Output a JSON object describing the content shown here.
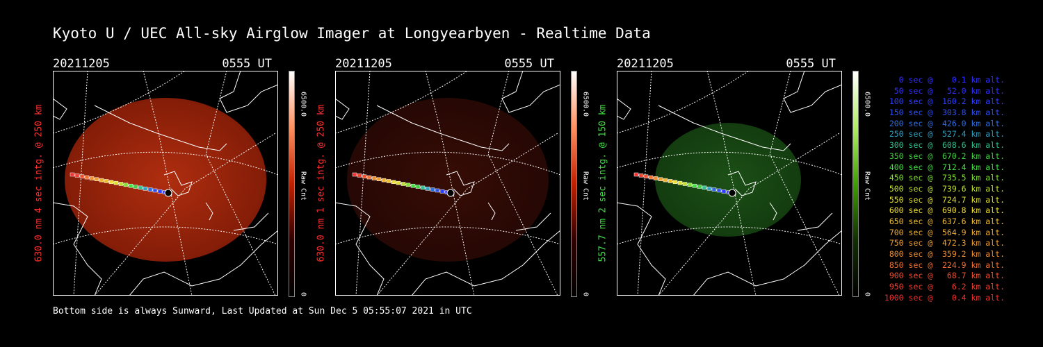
{
  "title": "Kyoto U / UEC All-sky Airglow Imager at Longyearbyen - Realtime Data",
  "panels": [
    {
      "date": "20211205",
      "time": "0555 UT",
      "ylabel": "630.0 nm 4 sec intg. @ 250 km",
      "label_color": "#ff3030",
      "cbar_max": "6500.0",
      "cbar_unit": "Raw Cnt",
      "cbar_min": "0",
      "glow": "red-bright"
    },
    {
      "date": "20211205",
      "time": "0555 UT",
      "ylabel": "630.0 nm 1 sec intg. @ 250 km",
      "label_color": "#ff3030",
      "cbar_max": "6500.0",
      "cbar_unit": "Raw Cnt",
      "cbar_min": "0",
      "glow": "red-dim"
    },
    {
      "date": "20211205",
      "time": "0555 UT",
      "ylabel": "557.7 nm 2 sec intg. @ 150 km",
      "label_color": "#40e040",
      "cbar_max": "6500.0",
      "cbar_unit": "Raw Cnt",
      "cbar_min": "0",
      "glow": "green"
    }
  ],
  "legend": [
    {
      "text": "   0 sec @    0.1 km alt.",
      "color": "#3030ff"
    },
    {
      "text": "  50 sec @   52.0 km alt.",
      "color": "#3030ff"
    },
    {
      "text": " 100 sec @  160.2 km alt.",
      "color": "#3040ff"
    },
    {
      "text": " 150 sec @  303.8 km alt.",
      "color": "#3050f0"
    },
    {
      "text": " 200 sec @  426.0 km alt.",
      "color": "#3070e0"
    },
    {
      "text": " 250 sec @  527.4 km alt.",
      "color": "#30a0c0"
    },
    {
      "text": " 300 sec @  608.6 km alt.",
      "color": "#30c090"
    },
    {
      "text": " 350 sec @  670.2 km alt.",
      "color": "#40d040"
    },
    {
      "text": " 400 sec @  712.4 km alt.",
      "color": "#40e040"
    },
    {
      "text": " 450 sec @  735.5 km alt.",
      "color": "#80e030"
    },
    {
      "text": " 500 sec @  739.6 km alt.",
      "color": "#c0e030"
    },
    {
      "text": " 550 sec @  724.7 km alt.",
      "color": "#e0e030"
    },
    {
      "text": " 600 sec @  690.8 km alt.",
      "color": "#f0e030"
    },
    {
      "text": " 650 sec @  637.6 km alt.",
      "color": "#f0c030"
    },
    {
      "text": " 700 sec @  564.9 km alt.",
      "color": "#f0b030"
    },
    {
      "text": " 750 sec @  472.3 km alt.",
      "color": "#f0a030"
    },
    {
      "text": " 800 sec @  359.2 km alt.",
      "color": "#f09030"
    },
    {
      "text": " 850 sec @  224.9 km alt.",
      "color": "#f07030"
    },
    {
      "text": " 900 sec @   68.7 km alt.",
      "color": "#f05030"
    },
    {
      "text": " 950 sec @    6.2 km alt.",
      "color": "#f04030"
    },
    {
      "text": "1000 sec @    0.4 km alt.",
      "color": "#f03030"
    }
  ],
  "footer": "Bottom side is always Sunward, Last Updated at Sun Dec  5 05:55:07 2021 in UTC"
}
